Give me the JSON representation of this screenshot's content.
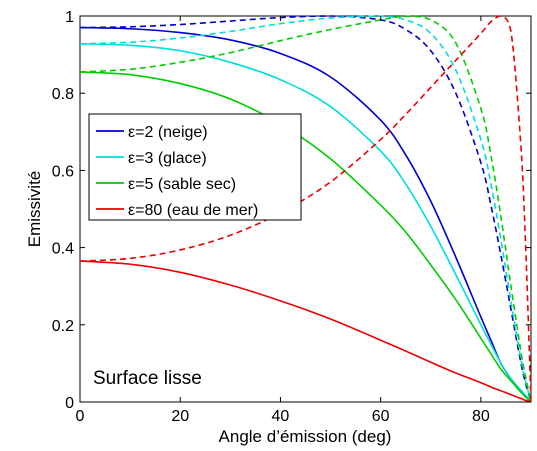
{
  "chart_data": {
    "type": "line",
    "title": "",
    "xlabel": "Angle d’émission (deg)",
    "ylabel": "Emissivité",
    "xlim": [
      0,
      90
    ],
    "ylim": [
      0,
      1
    ],
    "xticks": [
      0,
      20,
      40,
      60,
      80
    ],
    "yticks": [
      0,
      0.2,
      0.4,
      0.6,
      0.8,
      1
    ],
    "xtick_labels": [
      "0",
      "20",
      "40",
      "60",
      "80"
    ],
    "ytick_labels": [
      "0",
      "0.2",
      "0.4",
      "0.6",
      "0.8",
      "1"
    ],
    "grid": false,
    "legend_position": "center-left",
    "annotation": "Surface lisse",
    "x": [
      0,
      10,
      20,
      30,
      40,
      50,
      60,
      65,
      70,
      75,
      80,
      82,
      84,
      86,
      88,
      89,
      90
    ],
    "series": [
      {
        "name": "ε=2 (neige)",
        "color": "#0000cc",
        "style": "solid",
        "values": [
          0.97,
          0.967,
          0.957,
          0.938,
          0.903,
          0.842,
          0.73,
          0.64,
          0.52,
          0.375,
          0.22,
          0.16,
          0.1,
          0.06,
          0.03,
          0.015,
          0
        ]
      },
      {
        "name": "ε=2 (neige)",
        "color": "#0000cc",
        "style": "dashed",
        "values": [
          0.97,
          0.972,
          0.978,
          0.987,
          0.996,
          1.0,
          0.99,
          0.965,
          0.91,
          0.8,
          0.62,
          0.51,
          0.38,
          0.24,
          0.1,
          0.045,
          0
        ]
      },
      {
        "name": "ε=3 (glace)",
        "color": "#00dddd",
        "style": "solid",
        "values": [
          0.928,
          0.924,
          0.91,
          0.88,
          0.835,
          0.765,
          0.65,
          0.565,
          0.455,
          0.33,
          0.2,
          0.15,
          0.1,
          0.06,
          0.03,
          0.015,
          0
        ]
      },
      {
        "name": "ε=3 (glace)",
        "color": "#00dddd",
        "style": "dashed",
        "values": [
          0.928,
          0.932,
          0.943,
          0.96,
          0.98,
          0.995,
          0.999,
          0.99,
          0.955,
          0.86,
          0.68,
          0.565,
          0.42,
          0.26,
          0.11,
          0.05,
          0
        ]
      },
      {
        "name": "ε=5 (sable sec)",
        "color": "#00cc00",
        "style": "solid",
        "values": [
          0.855,
          0.848,
          0.825,
          0.785,
          0.72,
          0.63,
          0.51,
          0.44,
          0.355,
          0.265,
          0.165,
          0.125,
          0.085,
          0.055,
          0.025,
          0.012,
          0
        ]
      },
      {
        "name": "ε=5 (sable sec)",
        "color": "#00cc00",
        "style": "dashed",
        "values": [
          0.855,
          0.862,
          0.88,
          0.905,
          0.936,
          0.965,
          0.99,
          0.999,
          0.99,
          0.93,
          0.76,
          0.64,
          0.48,
          0.3,
          0.13,
          0.06,
          0
        ]
      },
      {
        "name": "ε=80 (eau de mer)",
        "color": "#ee0000",
        "style": "solid",
        "values": [
          0.365,
          0.357,
          0.336,
          0.303,
          0.262,
          0.215,
          0.16,
          0.132,
          0.103,
          0.075,
          0.05,
          0.039,
          0.029,
          0.019,
          0.009,
          0.004,
          0
        ]
      },
      {
        "name": "ε=80 (eau de mer)",
        "color": "#ee0000",
        "style": "dashed",
        "values": [
          0.365,
          0.372,
          0.394,
          0.432,
          0.49,
          0.57,
          0.68,
          0.745,
          0.815,
          0.885,
          0.955,
          0.985,
          1.0,
          0.96,
          0.66,
          0.38,
          0
        ]
      }
    ],
    "legend": [
      {
        "label": "ε=2 (neige)",
        "color": "#0000cc"
      },
      {
        "label": "ε=3 (glace)",
        "color": "#00dddd"
      },
      {
        "label": "ε=5 (sable sec)",
        "color": "#00cc00"
      },
      {
        "label": "ε=80 (eau de mer)",
        "color": "#ee0000"
      }
    ]
  }
}
